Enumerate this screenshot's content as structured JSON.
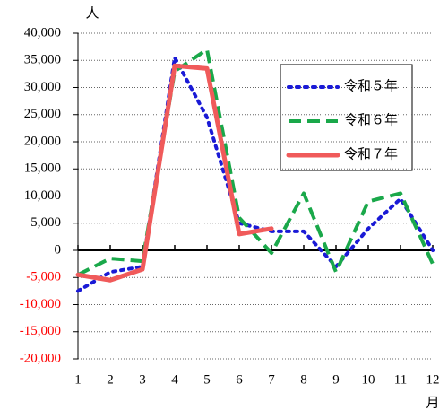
{
  "chart_data": {
    "type": "line",
    "y_label": "人",
    "x_label": "月",
    "x": [
      1,
      2,
      3,
      4,
      5,
      6,
      7,
      8,
      9,
      10,
      11,
      12
    ],
    "xlim": [
      1,
      12
    ],
    "xticks": [
      1,
      2,
      3,
      4,
      5,
      6,
      7,
      8,
      9,
      10,
      11,
      12
    ],
    "ylim": [
      -20000,
      40000
    ],
    "yticks": [
      {
        "value": -20000,
        "label": "-20,000"
      },
      {
        "value": -15000,
        "label": "-15,000"
      },
      {
        "value": -10000,
        "label": "-10,000"
      },
      {
        "value": -5000,
        "label": "-5,000"
      },
      0,
      {
        "value": 5000,
        "label": "5,000"
      },
      {
        "value": 10000,
        "label": "10,000"
      },
      {
        "value": 15000,
        "label": "15,000"
      },
      {
        "value": 20000,
        "label": "20,000"
      },
      {
        "value": 25000,
        "label": "25,000"
      },
      {
        "value": 30000,
        "label": "30,000"
      },
      {
        "value": 35000,
        "label": "35,000"
      },
      {
        "value": 40000,
        "label": "40,000"
      }
    ],
    "grid": true,
    "negative_tick_color": "#ff0000",
    "legend": "upper right",
    "series": [
      {
        "name": "令和５年",
        "color": "#1a1ad6",
        "style": "dotted",
        "values": [
          -7500,
          -4000,
          -3000,
          35500,
          24500,
          5000,
          3500,
          3500,
          -3000,
          4000,
          9500,
          0
        ]
      },
      {
        "name": "令和６年",
        "color": "#1aa84a",
        "style": "dashed",
        "values": [
          -4500,
          -1500,
          -2000,
          33000,
          37000,
          6000,
          -500,
          10500,
          -4000,
          9000,
          10500,
          -2500
        ]
      },
      {
        "name": "令和７年",
        "color": "#f05a5a",
        "style": "solid",
        "values": [
          -4500,
          -5500,
          -3500,
          34000,
          33500,
          3000,
          4000,
          null,
          null,
          null,
          null,
          null
        ]
      }
    ]
  }
}
